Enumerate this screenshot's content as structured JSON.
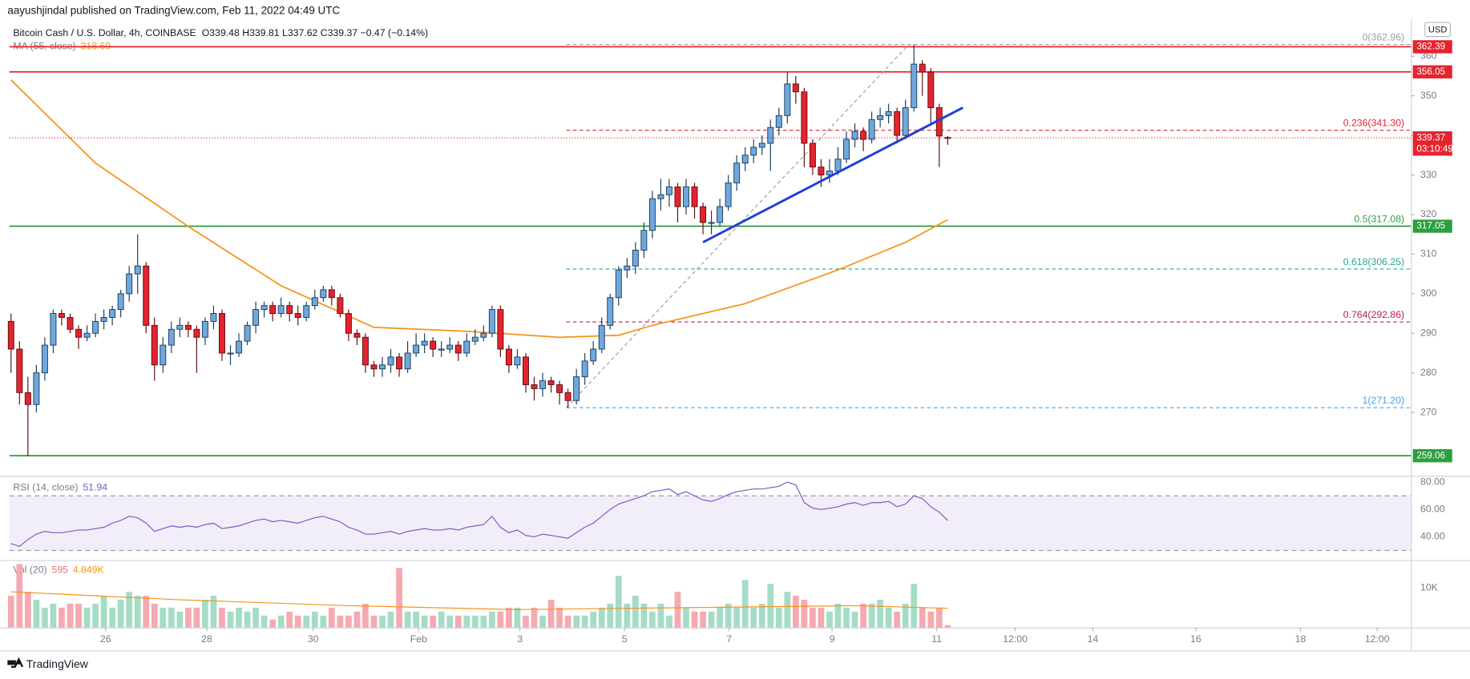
{
  "chart_data": {
    "type": "candlestick",
    "publisher": "aayushjindal published on TradingView.com, Feb 11, 2022 04:49 UTC",
    "title": "Bitcoin Cash / U.S. Dollar, 4h, COINBASE",
    "ohlc_legend": "O339.48 H339.81 L337.62 C339.37 −0.47 (−0.14%)",
    "brand": "TradingView",
    "currency": "USD",
    "countdown": "03:10:49",
    "up_color": "#6fa8dc",
    "down_color": "#e5232e",
    "xlim": [
      -0.2,
      165.9
    ],
    "xticks": [
      {
        "value": 11.2,
        "label": "26"
      },
      {
        "value": 23.2,
        "label": "28"
      },
      {
        "value": 35.8,
        "label": "30"
      },
      {
        "value": 48.3,
        "label": "Feb"
      },
      {
        "value": 60.3,
        "label": "3"
      },
      {
        "value": 72.7,
        "label": "5"
      },
      {
        "value": 85.1,
        "label": "7"
      },
      {
        "value": 97.3,
        "label": "9"
      },
      {
        "value": 109.7,
        "label": "11"
      },
      {
        "value": 119,
        "label": "12:00"
      },
      {
        "value": 128.2,
        "label": "14"
      },
      {
        "value": 140.4,
        "label": "16"
      },
      {
        "value": 152.8,
        "label": "18"
      },
      {
        "value": 161.9,
        "label": "12:00"
      }
    ],
    "ylim": [
      254,
      369
    ],
    "yticks": [
      270,
      280,
      290,
      300,
      310,
      320,
      330,
      340,
      350,
      360
    ],
    "ohlc": [
      [
        293,
        295,
        280,
        286
      ],
      [
        286,
        288,
        272,
        275
      ],
      [
        275,
        279,
        259,
        272
      ],
      [
        272,
        282,
        270,
        280
      ],
      [
        280,
        289,
        278,
        287
      ],
      [
        287,
        296,
        285,
        295
      ],
      [
        295,
        296,
        292,
        294
      ],
      [
        294,
        295,
        290,
        291
      ],
      [
        291,
        292,
        286,
        289
      ],
      [
        289,
        292,
        288,
        290
      ],
      [
        290,
        295,
        289,
        293
      ],
      [
        293,
        296,
        291,
        294
      ],
      [
        294,
        297,
        292,
        296
      ],
      [
        296,
        301,
        294,
        300
      ],
      [
        300,
        307,
        298,
        305
      ],
      [
        305,
        315,
        300,
        307
      ],
      [
        307,
        308,
        290,
        292
      ],
      [
        292,
        294,
        278,
        282
      ],
      [
        282,
        289,
        280,
        287
      ],
      [
        287,
        293,
        285,
        291
      ],
      [
        291,
        294,
        289,
        292
      ],
      [
        292,
        293,
        289,
        291
      ],
      [
        291,
        292,
        280,
        289
      ],
      [
        289,
        294,
        287,
        293
      ],
      [
        293,
        297,
        291,
        295
      ],
      [
        295,
        296,
        283,
        285
      ],
      [
        285,
        287,
        282,
        285
      ],
      [
        285,
        290,
        284,
        288
      ],
      [
        288,
        293,
        287,
        292
      ],
      [
        292,
        298,
        290,
        296
      ],
      [
        296,
        298,
        294,
        297
      ],
      [
        297,
        298,
        293,
        295
      ],
      [
        295,
        299,
        294,
        297
      ],
      [
        297,
        298,
        293,
        295
      ],
      [
        295,
        297,
        292,
        294
      ],
      [
        294,
        298,
        293,
        297
      ],
      [
        297,
        301,
        296,
        299
      ],
      [
        299,
        302,
        298,
        301
      ],
      [
        301,
        302,
        297,
        299
      ],
      [
        299,
        300,
        294,
        295
      ],
      [
        295,
        296,
        288,
        290
      ],
      [
        290,
        291,
        287,
        289
      ],
      [
        289,
        290,
        280,
        282
      ],
      [
        282,
        283,
        279,
        281
      ],
      [
        281,
        284,
        279,
        282
      ],
      [
        282,
        286,
        280,
        284
      ],
      [
        284,
        285,
        279,
        281
      ],
      [
        281,
        288,
        280,
        285
      ],
      [
        285,
        290,
        284,
        287
      ],
      [
        287,
        290,
        285,
        288
      ],
      [
        288,
        289,
        284,
        286
      ],
      [
        286,
        288,
        284,
        286
      ],
      [
        286,
        289,
        285,
        287
      ],
      [
        287,
        288,
        283,
        285
      ],
      [
        285,
        290,
        284,
        288
      ],
      [
        288,
        291,
        287,
        289
      ],
      [
        289,
        292,
        288,
        290
      ],
      [
        290,
        297,
        289,
        296
      ],
      [
        296,
        297,
        284,
        286
      ],
      [
        286,
        287,
        280,
        282
      ],
      [
        282,
        286,
        281,
        284
      ],
      [
        284,
        285,
        275,
        277
      ],
      [
        277,
        279,
        273,
        276
      ],
      [
        276,
        280,
        274,
        278
      ],
      [
        278,
        279,
        275,
        277
      ],
      [
        277,
        278,
        272,
        275
      ],
      [
        275,
        276,
        271.2,
        273
      ],
      [
        273,
        281,
        272,
        279
      ],
      [
        279,
        285,
        277,
        283
      ],
      [
        283,
        288,
        282,
        286
      ],
      [
        286,
        294,
        285,
        292
      ],
      [
        292,
        300,
        291,
        299
      ],
      [
        299,
        307,
        297,
        306
      ],
      [
        306,
        309,
        304,
        307
      ],
      [
        307,
        313,
        305,
        311
      ],
      [
        311,
        318,
        309,
        316
      ],
      [
        316,
        326,
        314,
        324
      ],
      [
        324,
        329,
        321,
        325
      ],
      [
        325,
        329,
        322,
        327
      ],
      [
        327,
        328,
        318,
        322
      ],
      [
        322,
        329,
        320,
        327
      ],
      [
        327,
        328,
        319,
        322
      ],
      [
        322,
        323,
        315,
        318
      ],
      [
        318,
        321,
        315,
        318
      ],
      [
        318,
        324,
        317,
        322
      ],
      [
        322,
        330,
        321,
        328
      ],
      [
        328,
        335,
        326,
        333
      ],
      [
        333,
        337,
        331,
        335
      ],
      [
        335,
        339,
        333,
        337
      ],
      [
        337,
        340,
        335,
        338
      ],
      [
        338,
        344,
        331,
        342
      ],
      [
        342,
        347,
        340,
        345
      ],
      [
        345,
        356,
        343,
        353
      ],
      [
        353,
        355,
        348,
        351
      ],
      [
        351,
        352,
        332,
        338
      ],
      [
        338,
        339,
        330,
        332
      ],
      [
        332,
        334,
        327,
        330
      ],
      [
        330,
        334,
        328,
        331
      ],
      [
        331,
        337,
        330,
        334
      ],
      [
        334,
        341,
        333,
        339
      ],
      [
        339,
        343,
        337,
        341
      ],
      [
        341,
        342,
        336,
        339
      ],
      [
        339,
        346,
        338,
        344
      ],
      [
        344,
        347,
        342,
        345
      ],
      [
        345,
        348,
        343,
        346
      ],
      [
        346,
        347,
        338,
        340
      ],
      [
        340,
        349,
        339,
        347
      ],
      [
        347,
        362.96,
        346,
        358
      ],
      [
        358,
        359,
        350,
        356
      ],
      [
        356,
        357,
        343,
        347
      ],
      [
        347,
        348,
        332,
        339.84
      ],
      [
        339.48,
        339.81,
        337.62,
        339.37
      ]
    ],
    "ma": {
      "name": "MA (55, close)",
      "color": "#f7931a",
      "x": [
        0,
        10,
        21,
        32,
        43,
        54,
        65,
        72,
        76,
        87,
        98,
        106,
        111
      ],
      "values": [
        354,
        333,
        317,
        302,
        291.5,
        290.5,
        289,
        289.5,
        292,
        297.5,
        306,
        313,
        318.69
      ]
    },
    "levels": [
      {
        "value": 362.39,
        "color": "#e5232e"
      },
      {
        "value": 356.05,
        "color": "#e5232e"
      },
      {
        "value": 317.05,
        "color": "#2e9e3e"
      },
      {
        "value": 259.06,
        "color": "#2e9e3e"
      }
    ],
    "fib": {
      "x": [
        65.8,
        165.9
      ],
      "levels": [
        {
          "label": "0(362.96)",
          "value": 362.96,
          "color": "#9e9e9e"
        },
        {
          "label": "0.236(341.30)",
          "value": 341.3,
          "color": "#e5232e"
        },
        {
          "label": "0.5(317.08)",
          "value": 317.08,
          "color": "#2e9e3e"
        },
        {
          "label": "0.618(306.25)",
          "value": 306.25,
          "color": "#26a69a"
        },
        {
          "label": "0.764(292.86)",
          "value": 292.86,
          "color": "#c2185b"
        },
        {
          "label": "1(271.20)",
          "value": 271.2,
          "color": "#42a5f5"
        }
      ]
    },
    "fib_diagonal": {
      "x": [
        65.8,
        106.4
      ],
      "values": [
        271.2,
        362.96
      ],
      "color": "#9e9e9e"
    },
    "trendline": {
      "x": [
        82,
        112.8
      ],
      "values": [
        313,
        347
      ],
      "color": "#1f3fd6"
    },
    "rsi": {
      "name": "RSI (14, close)",
      "color": "#7e57c2",
      "ylim": [
        23,
        84
      ],
      "yticks": [
        {
          "value": 80,
          "label": "80.00"
        },
        {
          "value": 60,
          "label": "60.00"
        },
        {
          "value": 40,
          "label": "40.00"
        }
      ],
      "band": [
        70,
        30
      ],
      "values": [
        35,
        33,
        38,
        42,
        44,
        43,
        43,
        44,
        45,
        45,
        46,
        47,
        50,
        52,
        55,
        54,
        50,
        44,
        46,
        48,
        47,
        48,
        47,
        49,
        50,
        46,
        47,
        48,
        50,
        52,
        53,
        51,
        52,
        51,
        50,
        52,
        54,
        55,
        53,
        51,
        47,
        45,
        42,
        42,
        43,
        44,
        42,
        44,
        45,
        46,
        45,
        45,
        46,
        45,
        47,
        48,
        49,
        55,
        47,
        43,
        45,
        41,
        40,
        42,
        41,
        40,
        39,
        43,
        47,
        50,
        55,
        60,
        64,
        66,
        68,
        70,
        73,
        74,
        75,
        71,
        73,
        70,
        67,
        66,
        68,
        71,
        73,
        74,
        75,
        75,
        76,
        77,
        80,
        78,
        65,
        61,
        60,
        61,
        62,
        64,
        65,
        63,
        65,
        65,
        66,
        62,
        64,
        70,
        68,
        62,
        58,
        51.94
      ]
    },
    "volume": {
      "name": "Vol (20)",
      "up_color": "#a5dcc6",
      "down_color": "#f5a9b0",
      "ylim": [
        0,
        17000
      ],
      "yticks": [
        {
          "value": 10000,
          "label": "10K"
        }
      ],
      "values": [
        8000,
        16000,
        9000,
        7000,
        5000,
        6000,
        5000,
        6000,
        6000,
        5000,
        6000,
        8000,
        5000,
        7000,
        9000,
        8000,
        8000,
        6000,
        5000,
        5000,
        4000,
        5000,
        5000,
        7000,
        8000,
        5000,
        4000,
        5000,
        4000,
        5000,
        3000,
        2000,
        3000,
        4000,
        3000,
        3000,
        4000,
        3000,
        5000,
        3000,
        3000,
        4000,
        6000,
        3000,
        3000,
        4000,
        15000,
        4000,
        4000,
        3000,
        3000,
        4000,
        3000,
        3000,
        3000,
        3000,
        3000,
        4000,
        4000,
        5000,
        5000,
        3000,
        5000,
        3000,
        7000,
        5000,
        3000,
        3000,
        3000,
        4000,
        5000,
        6000,
        13000,
        6000,
        8000,
        6000,
        4000,
        6000,
        3000,
        9000,
        5000,
        4000,
        4000,
        4000,
        5000,
        6000,
        5000,
        12000,
        5000,
        6000,
        11000,
        5000,
        9000,
        8000,
        7000,
        5000,
        5000,
        4000,
        6000,
        5000,
        4000,
        6000,
        6000,
        7000,
        5000,
        4000,
        6000,
        11000,
        5000,
        4000,
        5000,
        595
      ],
      "ma": {
        "color": "#f7931a",
        "x": [
          0,
          20,
          40,
          60,
          80,
          100,
          111
        ],
        "values": [
          9000,
          7000,
          5500,
          4500,
          5000,
          5500,
          {
            "value": 4849,
            "label": "4.849K"
          }
        ]
      }
    }
  }
}
